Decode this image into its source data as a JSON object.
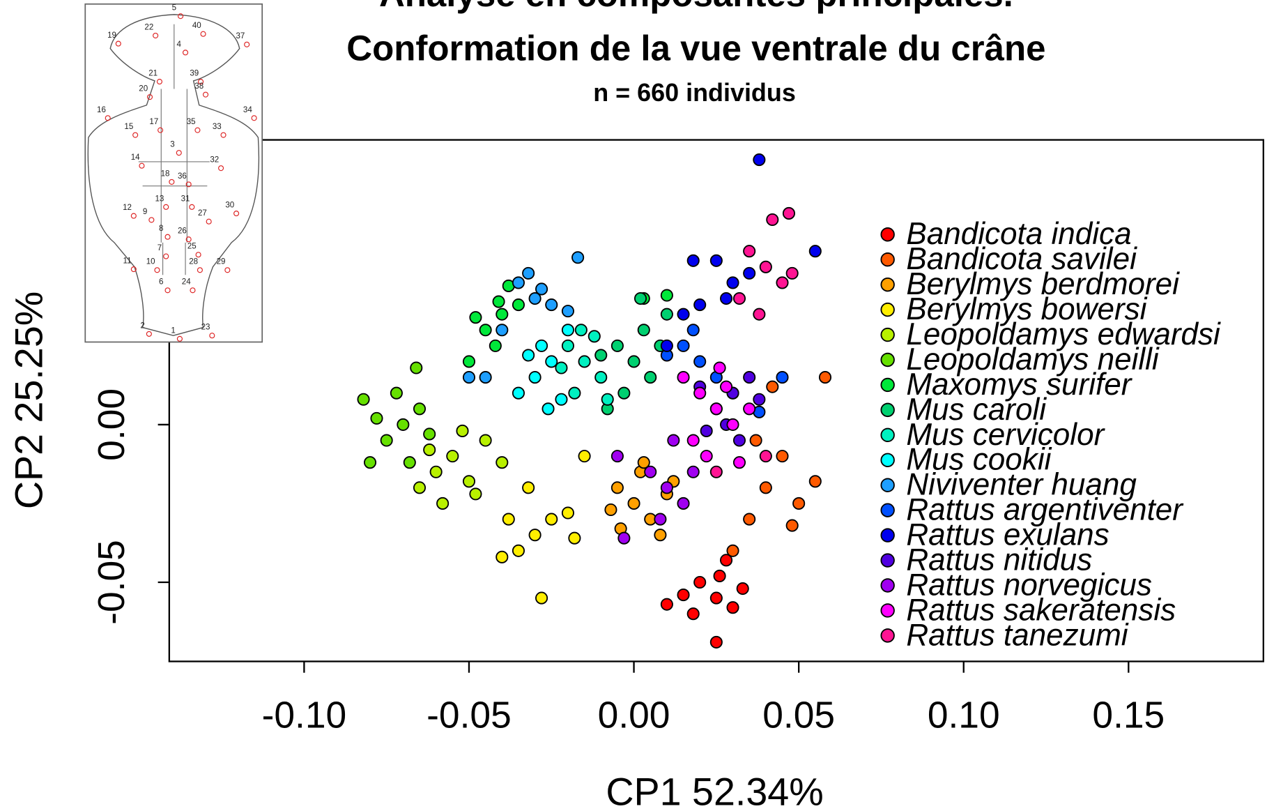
{
  "chart_data": {
    "type": "scatter",
    "title": "Analyse en composantes principales.",
    "subtitle": "Conformation de la vue ventrale du crâne",
    "note": "n = 660 individus",
    "x_label": "CP1 52.34%",
    "y_label": "CP2 25.25%",
    "xlim": [
      -0.1409,
      0.1909
    ],
    "ylim": [
      -0.0751,
      0.0903
    ],
    "xticks": [
      {
        "value": -0.1,
        "label": "-0.10"
      },
      {
        "value": -0.05,
        "label": "-0.05"
      },
      {
        "value": 0,
        "label": "0.00"
      },
      {
        "value": 0.05,
        "label": "0.05"
      },
      {
        "value": 0.1,
        "label": "0.10"
      },
      {
        "value": 0.15,
        "label": "0.15"
      }
    ],
    "yticks": [
      {
        "value": -0.05,
        "label": "-0.05"
      },
      {
        "value": 0,
        "label": "0.00"
      }
    ],
    "legend_position": "right",
    "series": [
      {
        "name": "Bandicota indica",
        "color": "#ff0000",
        "x": [
          0.025,
          0.02,
          0.03,
          0.018,
          0.026,
          0.033,
          0.01,
          0.025,
          0.028,
          0.015
        ],
        "values": [
          -0.055,
          -0.05,
          -0.058,
          -0.06,
          -0.048,
          -0.052,
          -0.057,
          -0.069,
          -0.043,
          -0.054
        ]
      },
      {
        "name": "Bandicota savilei",
        "color": "#ff5a00",
        "x": [
          0.04,
          0.045,
          0.05,
          0.035,
          0.055,
          0.042,
          0.058,
          0.048,
          0.03,
          0.037
        ],
        "values": [
          -0.02,
          -0.01,
          -0.025,
          -0.03,
          -0.018,
          0.012,
          0.015,
          -0.032,
          -0.04,
          -0.005
        ]
      },
      {
        "name": "Berylmys berdmorei",
        "color": "#ffa000",
        "x": [
          0.0,
          -0.005,
          0.005,
          0.002,
          0.01,
          -0.004,
          0.008,
          0.012,
          -0.007,
          0.003
        ],
        "values": [
          -0.025,
          -0.02,
          -0.03,
          -0.015,
          -0.022,
          -0.033,
          -0.035,
          -0.018,
          -0.027,
          -0.012
        ]
      },
      {
        "name": "Berylmys bowersi",
        "color": "#ffee00",
        "x": [
          -0.03,
          -0.035,
          -0.025,
          -0.04,
          -0.02,
          -0.028,
          -0.018,
          -0.032,
          -0.015,
          -0.038
        ],
        "values": [
          -0.035,
          -0.04,
          -0.03,
          -0.042,
          -0.028,
          -0.055,
          -0.036,
          -0.02,
          -0.01,
          -0.03
        ]
      },
      {
        "name": "Leopoldamys edwardsi",
        "color": "#b8f000",
        "x": [
          -0.06,
          -0.055,
          -0.065,
          -0.05,
          -0.058,
          -0.045,
          -0.062,
          -0.048,
          -0.04,
          -0.052
        ],
        "values": [
          -0.015,
          -0.01,
          -0.02,
          -0.018,
          -0.025,
          -0.005,
          -0.008,
          -0.022,
          -0.012,
          -0.002
        ]
      },
      {
        "name": "Leopoldamys neilli",
        "color": "#66e000",
        "x": [
          -0.07,
          -0.075,
          -0.065,
          -0.078,
          -0.068,
          -0.072,
          -0.062,
          -0.08,
          -0.066,
          -0.082
        ],
        "values": [
          0.0,
          -0.005,
          0.005,
          0.002,
          -0.012,
          0.01,
          -0.003,
          -0.012,
          0.018,
          0.008
        ]
      },
      {
        "name": "Maxomys surifer",
        "color": "#00e83a",
        "x": [
          -0.05,
          -0.04,
          -0.045,
          -0.035,
          -0.048,
          -0.041,
          -0.042,
          0.003,
          0.01,
          -0.038
        ],
        "values": [
          0.02,
          0.035,
          0.03,
          0.038,
          0.034,
          0.039,
          0.025,
          0.04,
          0.041,
          0.044
        ]
      },
      {
        "name": "Mus caroli",
        "color": "#00d070",
        "x": [
          0.0,
          -0.005,
          0.005,
          -0.01,
          0.003,
          -0.003,
          0.008,
          -0.008,
          0.01,
          0.002
        ],
        "values": [
          0.02,
          0.025,
          0.015,
          0.022,
          0.03,
          0.01,
          0.025,
          0.005,
          0.035,
          0.04
        ]
      },
      {
        "name": "Mus cervicolor",
        "color": "#00f0c0",
        "x": [
          -0.015,
          -0.02,
          -0.01,
          -0.018,
          -0.012,
          -0.022,
          -0.008,
          -0.016
        ],
        "values": [
          0.02,
          0.025,
          0.015,
          0.01,
          0.028,
          0.018,
          0.008,
          0.03
        ]
      },
      {
        "name": "Mus cookii",
        "color": "#00ffff",
        "x": [
          -0.03,
          -0.025,
          -0.035,
          -0.028,
          -0.022,
          -0.032,
          -0.02,
          -0.026
        ],
        "values": [
          0.015,
          0.02,
          0.01,
          0.025,
          0.008,
          0.022,
          0.03,
          0.005
        ]
      },
      {
        "name": "Niviventer huang",
        "color": "#1e9fff",
        "x": [
          -0.03,
          -0.035,
          -0.025,
          -0.04,
          -0.02,
          -0.032,
          -0.045,
          -0.017,
          -0.05,
          -0.028
        ],
        "values": [
          0.04,
          0.045,
          0.038,
          0.03,
          0.036,
          0.048,
          0.015,
          0.053,
          0.015,
          0.043
        ]
      },
      {
        "name": "Rattus argentiventer",
        "color": "#0050ff",
        "x": [
          0.02,
          0.015,
          0.025,
          0.01,
          0.018,
          0.03,
          0.045,
          0.038
        ],
        "values": [
          0.02,
          0.025,
          0.015,
          0.022,
          0.03,
          0.01,
          0.015,
          0.004
        ]
      },
      {
        "name": "Rattus exulans",
        "color": "#0000ee",
        "x": [
          0.03,
          0.025,
          0.035,
          0.028,
          0.02,
          0.018,
          0.038,
          0.055,
          0.015,
          0.01
        ],
        "values": [
          0.045,
          0.052,
          0.048,
          0.04,
          0.038,
          0.052,
          0.084,
          0.055,
          0.035,
          0.025
        ]
      },
      {
        "name": "Rattus nitidus",
        "color": "#5000e0",
        "x": [
          0.03,
          0.025,
          0.035,
          0.028,
          0.02,
          0.032,
          0.022,
          0.038
        ],
        "values": [
          0.01,
          0.005,
          0.015,
          0.0,
          0.012,
          -0.005,
          -0.002,
          0.008
        ]
      },
      {
        "name": "Rattus norvegicus",
        "color": "#a000f0",
        "x": [
          0.01,
          0.005,
          0.015,
          -0.005,
          0.008,
          0.012,
          -0.003,
          0.018
        ],
        "values": [
          -0.02,
          -0.015,
          -0.025,
          -0.01,
          -0.03,
          -0.005,
          -0.036,
          -0.015
        ]
      },
      {
        "name": "Rattus sakeratensis",
        "color": "#ff00ff",
        "x": [
          0.025,
          0.02,
          0.03,
          0.018,
          0.028,
          0.022,
          0.035,
          0.015,
          0.026,
          0.032
        ],
        "values": [
          0.005,
          0.01,
          0.0,
          -0.005,
          0.012,
          -0.01,
          0.005,
          0.015,
          0.018,
          -0.012
        ]
      },
      {
        "name": "Rattus tanezumi",
        "color": "#ff1493",
        "x": [
          0.04,
          0.035,
          0.045,
          0.042,
          0.047,
          0.032,
          0.048,
          0.038,
          0.025,
          0.04
        ],
        "values": [
          0.05,
          0.055,
          0.045,
          0.065,
          0.067,
          0.04,
          0.048,
          0.035,
          -0.015,
          -0.01
        ]
      }
    ],
    "inset_labels": [
      "5",
      "22",
      "40",
      "4",
      "19",
      "37",
      "21",
      "39",
      "20",
      "38",
      "16",
      "15",
      "17",
      "35",
      "34",
      "33",
      "3",
      "14",
      "32",
      "18",
      "36",
      "13",
      "31",
      "12",
      "9",
      "30",
      "27",
      "8",
      "26",
      "7",
      "25",
      "11",
      "10",
      "28",
      "29",
      "6",
      "24",
      "2",
      "1",
      "23"
    ]
  }
}
